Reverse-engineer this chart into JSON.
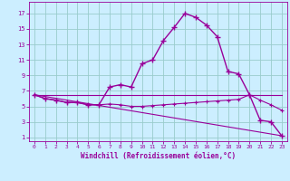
{
  "xlabel": "Windchill (Refroidissement éolien,°C)",
  "background_color": "#cceeff",
  "grid_color": "#99cccc",
  "line_color": "#990099",
  "x_values": [
    0,
    1,
    2,
    3,
    4,
    5,
    6,
    7,
    8,
    9,
    10,
    11,
    12,
    13,
    14,
    15,
    16,
    17,
    18,
    19,
    20,
    21,
    22,
    23
  ],
  "temp_line": [
    6.5,
    6.0,
    5.8,
    5.5,
    5.5,
    5.2,
    5.2,
    7.5,
    7.8,
    7.5,
    10.5,
    11.0,
    13.5,
    15.2,
    17.0,
    16.5,
    15.5,
    14.0,
    9.5,
    9.2,
    6.5,
    3.2,
    3.0,
    1.2
  ],
  "windchill_line": [
    6.5,
    6.0,
    5.8,
    5.5,
    5.5,
    5.2,
    5.2,
    5.3,
    5.2,
    5.0,
    5.0,
    5.1,
    5.2,
    5.3,
    5.4,
    5.5,
    5.6,
    5.7,
    5.8,
    5.9,
    6.5,
    5.8,
    5.2,
    4.5
  ],
  "straight_line1_x": [
    0,
    23
  ],
  "straight_line1_y": [
    6.5,
    6.5
  ],
  "straight_line2_x": [
    0,
    23
  ],
  "straight_line2_y": [
    6.5,
    1.2
  ],
  "ylim": [
    0.5,
    18.5
  ],
  "xlim": [
    -0.5,
    23.5
  ],
  "yticks": [
    1,
    3,
    5,
    7,
    9,
    11,
    13,
    15,
    17
  ],
  "xticks": [
    0,
    1,
    2,
    3,
    4,
    5,
    6,
    7,
    8,
    9,
    10,
    11,
    12,
    13,
    14,
    15,
    16,
    17,
    18,
    19,
    20,
    21,
    22,
    23
  ]
}
